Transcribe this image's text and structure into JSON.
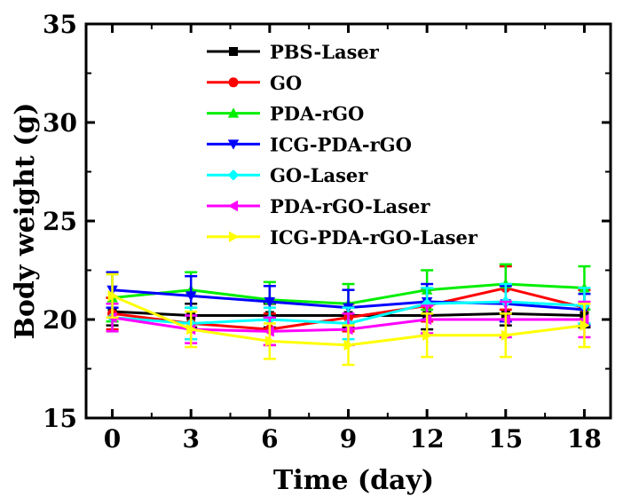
{
  "chart_data": {
    "type": "line",
    "xlabel": "Time (day)",
    "ylabel": "Body weight (g)",
    "xlim": [
      -1,
      19
    ],
    "ylim": [
      15,
      35
    ],
    "x": [
      0,
      3,
      6,
      9,
      12,
      15,
      18
    ],
    "xticks": [
      0,
      3,
      6,
      9,
      12,
      15,
      18
    ],
    "yticks": [
      15,
      20,
      25,
      30,
      35
    ],
    "legend_position": "top-center",
    "error_bars": true,
    "series": [
      {
        "name": "PBS-Laser",
        "color": "#000000",
        "marker": "square",
        "values": [
          20.4,
          20.2,
          20.2,
          20.2,
          20.2,
          20.3,
          20.2
        ],
        "errors": [
          0.7,
          0.6,
          0.6,
          0.6,
          0.7,
          0.6,
          0.6
        ]
      },
      {
        "name": "GO",
        "color": "#ff0000",
        "marker": "circle",
        "values": [
          20.3,
          19.8,
          19.5,
          20.1,
          20.7,
          21.6,
          20.6
        ],
        "errors": [
          0.8,
          0.8,
          0.8,
          0.7,
          0.8,
          1.1,
          0.9
        ]
      },
      {
        "name": "PDA-rGO",
        "color": "#00ee00",
        "marker": "triangle-up",
        "values": [
          21.1,
          21.5,
          21.0,
          20.8,
          21.5,
          21.8,
          21.6
        ],
        "errors": [
          1.2,
          0.9,
          0.9,
          1.0,
          1.0,
          1.0,
          1.1
        ]
      },
      {
        "name": "ICG-PDA-rGO",
        "color": "#0000ff",
        "marker": "triangle-down",
        "values": [
          21.5,
          21.2,
          20.9,
          20.6,
          20.9,
          20.8,
          20.5
        ],
        "errors": [
          0.9,
          1.0,
          0.8,
          0.9,
          0.9,
          0.9,
          0.8
        ]
      },
      {
        "name": "GO-Laser",
        "color": "#00ffff",
        "marker": "diamond",
        "values": [
          20.1,
          19.8,
          20.0,
          19.8,
          20.8,
          20.9,
          20.7
        ],
        "errors": [
          0.7,
          0.8,
          0.6,
          0.8,
          0.8,
          0.9,
          0.9
        ]
      },
      {
        "name": "PDA-rGO-Laser",
        "color": "#ff00ff",
        "marker": "triangle-left",
        "values": [
          20.1,
          19.5,
          19.4,
          19.5,
          20.0,
          20.0,
          20.0
        ],
        "errors": [
          0.7,
          0.7,
          0.7,
          0.8,
          0.7,
          0.9,
          0.9
        ]
      },
      {
        "name": "ICG-PDA-rGO-Laser",
        "color": "#ffff00",
        "marker": "triangle-right",
        "values": [
          21.2,
          19.5,
          18.9,
          18.7,
          19.2,
          19.2,
          19.7
        ],
        "errors": [
          1.1,
          0.9,
          0.9,
          1.0,
          1.1,
          1.1,
          1.1
        ]
      }
    ]
  }
}
